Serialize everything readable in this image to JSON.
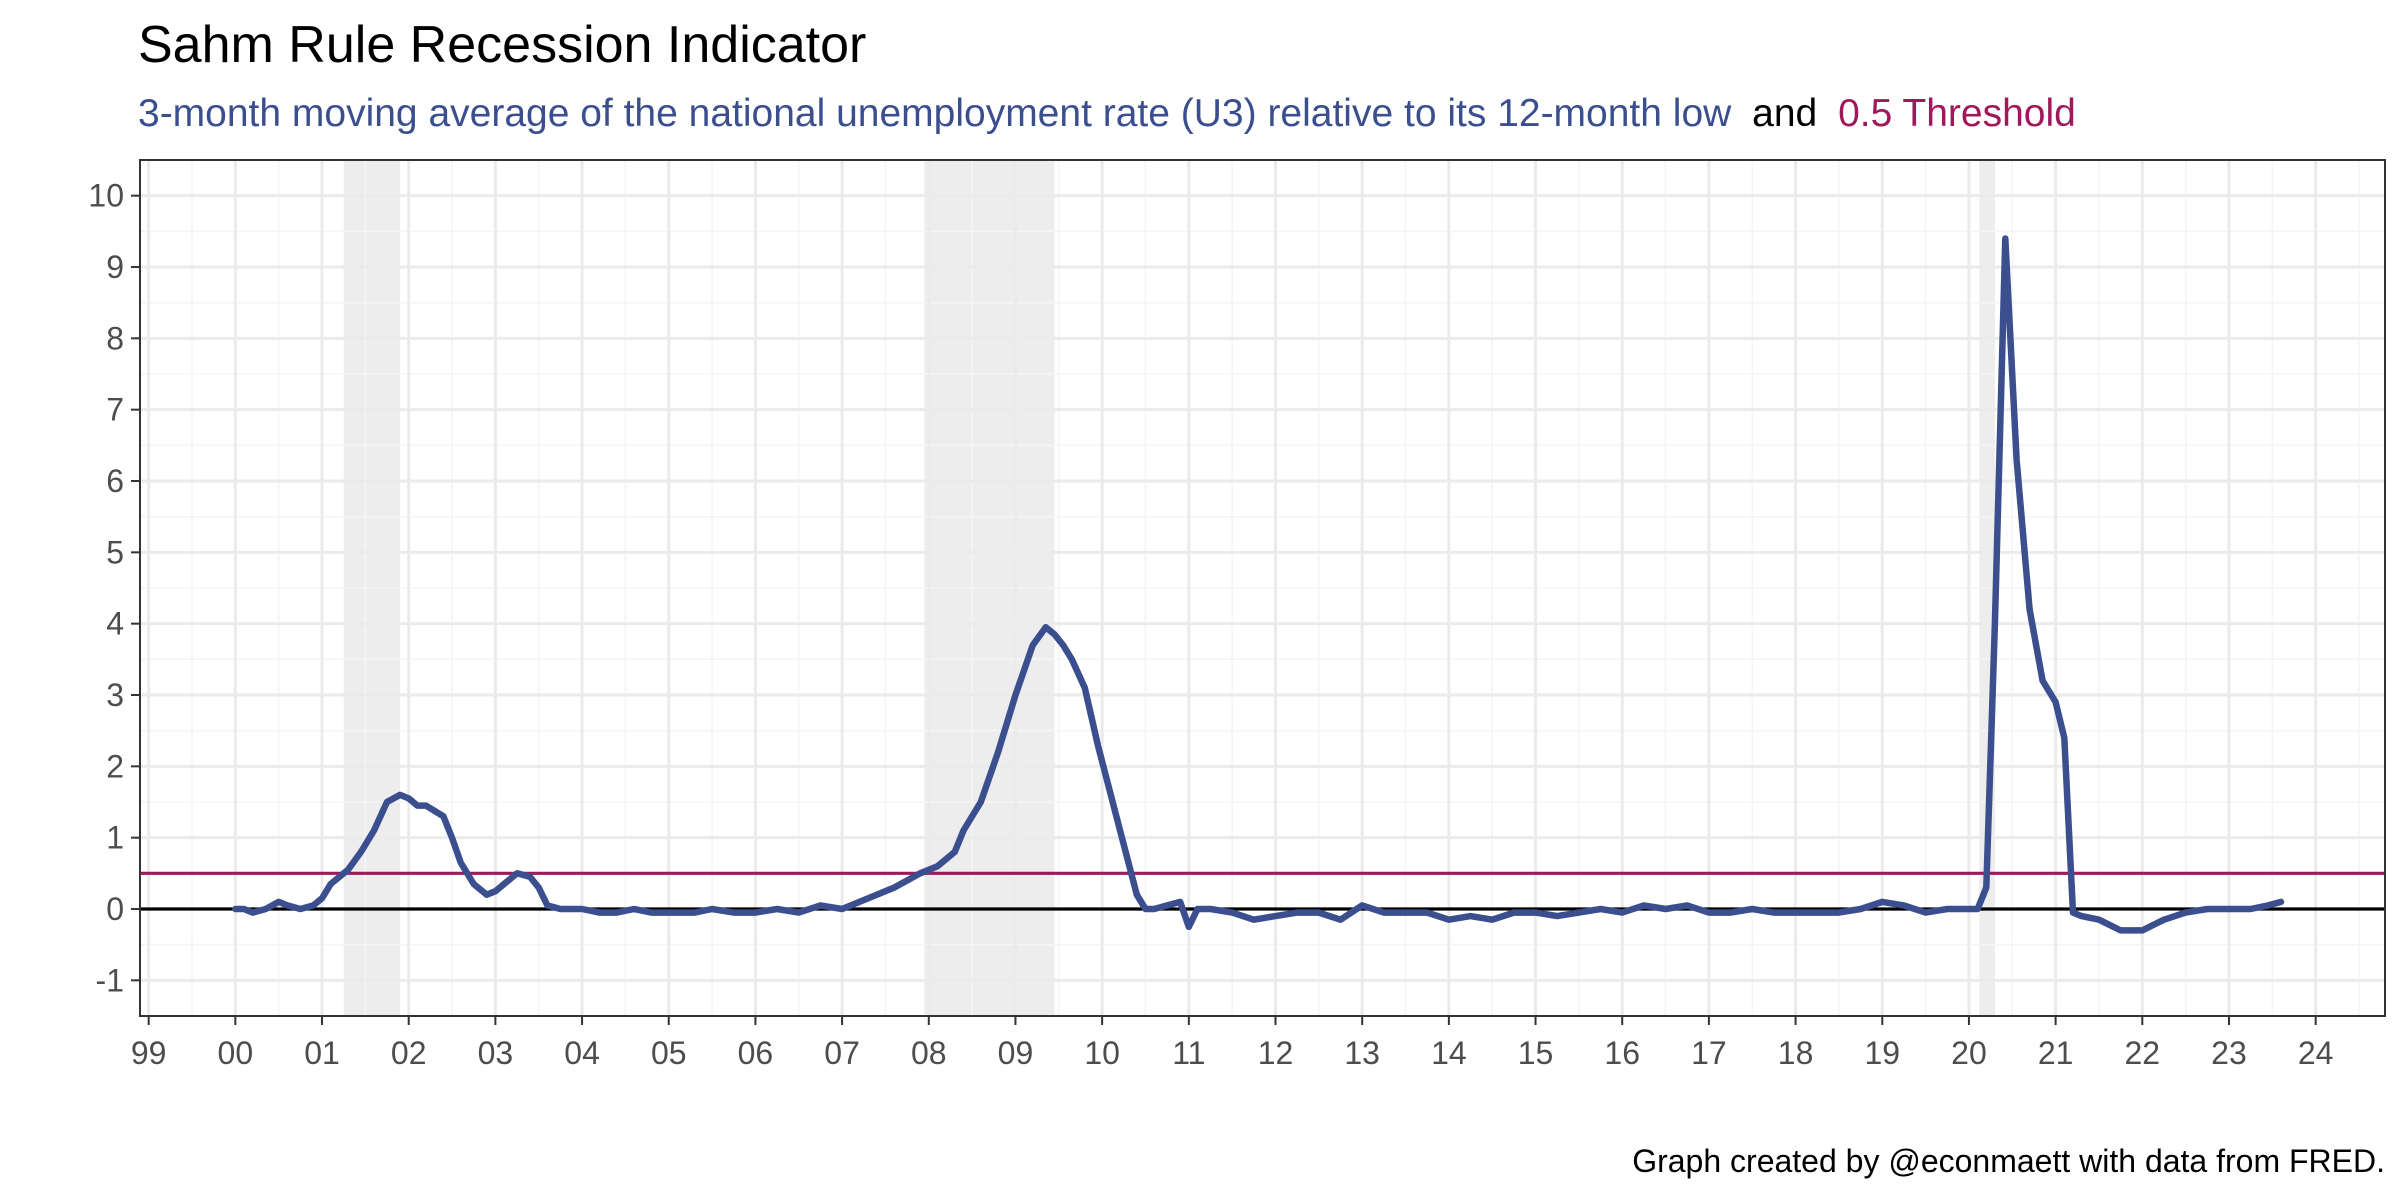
{
  "chart_data": {
    "type": "line",
    "title": "Sahm Rule Recession Indicator",
    "subtitle": {
      "series_part": "3-month moving average of the national unemployment rate (U3) relative to its 12-month low",
      "joiner": "and",
      "threshold_part": "0.5 Threshold"
    },
    "caption": "Graph created by @econmaett with data from FRED.",
    "xlabel": "",
    "ylabel": "",
    "xlim": [
      1998.9,
      2024.8
    ],
    "ylim": [
      -1.5,
      10.5
    ],
    "x_ticks": [
      1999,
      2000,
      2001,
      2002,
      2003,
      2004,
      2005,
      2006,
      2007,
      2008,
      2009,
      2010,
      2011,
      2012,
      2013,
      2014,
      2015,
      2016,
      2017,
      2018,
      2019,
      2020,
      2021,
      2022,
      2023,
      2024
    ],
    "x_tick_labels": [
      "99",
      "00",
      "01",
      "02",
      "03",
      "04",
      "05",
      "06",
      "07",
      "08",
      "09",
      "10",
      "11",
      "12",
      "13",
      "14",
      "15",
      "16",
      "17",
      "18",
      "19",
      "20",
      "21",
      "22",
      "23",
      "24"
    ],
    "y_ticks": [
      -1,
      0,
      1,
      2,
      3,
      4,
      5,
      6,
      7,
      8,
      9,
      10
    ],
    "y_tick_labels": [
      "-1",
      "0",
      "1",
      "2",
      "3",
      "4",
      "5",
      "6",
      "7",
      "8",
      "9",
      "10"
    ],
    "grid": true,
    "recessions": [
      {
        "start": 2001.25,
        "end": 2001.9
      },
      {
        "start": 2007.95,
        "end": 2009.45
      },
      {
        "start": 2020.12,
        "end": 2020.3
      }
    ],
    "threshold": 0.5,
    "zero_line": 0,
    "colors": {
      "series": "#3b4f8f",
      "threshold": "#a0185a",
      "zero_line": "#000000",
      "recession_shade": "#ededed",
      "grid_major": "#ebebeb",
      "grid_minor": "#f5f5f5",
      "panel_border": "#333333",
      "tick_text": "#4d4d4d"
    },
    "series": [
      {
        "x": [
          2000.0,
          2000.1,
          2000.2,
          2000.35,
          2000.5,
          2000.6,
          2000.75,
          2000.9,
          2001.0,
          2001.1,
          2001.2,
          2001.3,
          2001.45,
          2001.6,
          2001.75,
          2001.9,
          2002.0,
          2002.1,
          2002.2,
          2002.4,
          2002.5,
          2002.6,
          2002.75,
          2002.9,
          2003.0,
          2003.1,
          2003.25,
          2003.4,
          2003.5,
          2003.6,
          2003.75,
          2003.9,
          2004.0,
          2004.2,
          2004.4,
          2004.6,
          2004.8,
          2005.0,
          2005.3,
          2005.5,
          2005.75,
          2006.0,
          2006.25,
          2006.5,
          2006.75,
          2007.0,
          2007.2,
          2007.4,
          2007.6,
          2007.75,
          2007.9,
          2008.0,
          2008.1,
          2008.3,
          2008.4,
          2008.6,
          2008.8,
          2009.0,
          2009.2,
          2009.35,
          2009.45,
          2009.55,
          2009.65,
          2009.8,
          2009.95,
          2010.1,
          2010.25,
          2010.4,
          2010.5,
          2010.6,
          2010.75,
          2010.9,
          2011.0,
          2011.1,
          2011.25,
          2011.5,
          2011.75,
          2012.0,
          2012.25,
          2012.5,
          2012.75,
          2013.0,
          2013.25,
          2013.5,
          2013.75,
          2014.0,
          2014.25,
          2014.5,
          2014.75,
          2015.0,
          2015.25,
          2015.5,
          2015.75,
          2016.0,
          2016.25,
          2016.5,
          2016.75,
          2017.0,
          2017.25,
          2017.5,
          2017.75,
          2018.0,
          2018.25,
          2018.5,
          2018.75,
          2019.0,
          2019.25,
          2019.5,
          2019.75,
          2020.0,
          2020.1,
          2020.2,
          2020.3,
          2020.42,
          2020.55,
          2020.7,
          2020.85,
          2021.0,
          2021.1,
          2021.2,
          2021.3,
          2021.5,
          2021.75,
          2022.0,
          2022.25,
          2022.5,
          2022.75,
          2023.0,
          2023.25,
          2023.45,
          2023.6
        ],
        "y": [
          0.0,
          0.0,
          -0.05,
          0.0,
          0.1,
          0.05,
          0.0,
          0.05,
          0.15,
          0.35,
          0.45,
          0.55,
          0.8,
          1.1,
          1.5,
          1.6,
          1.55,
          1.45,
          1.45,
          1.3,
          1.0,
          0.65,
          0.35,
          0.2,
          0.25,
          0.35,
          0.5,
          0.45,
          0.3,
          0.05,
          0.0,
          0.0,
          0.0,
          -0.05,
          -0.05,
          0.0,
          -0.05,
          -0.05,
          -0.05,
          0.0,
          -0.05,
          -0.05,
          0.0,
          -0.05,
          0.05,
          0.0,
          0.1,
          0.2,
          0.3,
          0.4,
          0.5,
          0.55,
          0.6,
          0.8,
          1.1,
          1.5,
          2.2,
          3.0,
          3.7,
          3.95,
          3.85,
          3.7,
          3.5,
          3.1,
          2.3,
          1.6,
          0.9,
          0.2,
          0.0,
          0.0,
          0.05,
          0.1,
          -0.25,
          0.0,
          0.0,
          -0.05,
          -0.15,
          -0.1,
          -0.05,
          -0.05,
          -0.15,
          0.05,
          -0.05,
          -0.05,
          -0.05,
          -0.15,
          -0.1,
          -0.15,
          -0.05,
          -0.05,
          -0.1,
          -0.05,
          0.0,
          -0.05,
          0.05,
          0.0,
          0.05,
          -0.05,
          -0.05,
          0.0,
          -0.05,
          -0.05,
          -0.05,
          -0.05,
          0.0,
          0.1,
          0.05,
          -0.05,
          0.0,
          0.0,
          0.0,
          0.3,
          4.0,
          9.4,
          6.3,
          4.2,
          3.2,
          2.9,
          2.4,
          -0.05,
          -0.1,
          -0.15,
          -0.3,
          -0.3,
          -0.15,
          -0.05,
          0.0,
          0.0,
          0.0,
          0.05,
          0.1
        ]
      }
    ]
  }
}
